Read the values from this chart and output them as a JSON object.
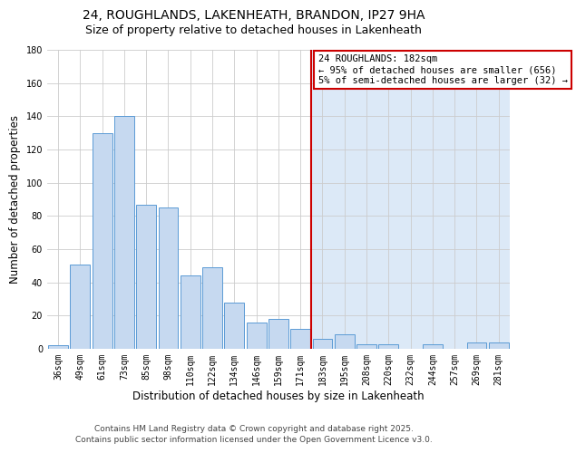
{
  "title": "24, ROUGHLANDS, LAKENHEATH, BRANDON, IP27 9HA",
  "subtitle": "Size of property relative to detached houses in Lakenheath",
  "xlabel": "Distribution of detached houses by size in Lakenheath",
  "ylabel": "Number of detached properties",
  "bar_labels": [
    "36sqm",
    "49sqm",
    "61sqm",
    "73sqm",
    "85sqm",
    "98sqm",
    "110sqm",
    "122sqm",
    "134sqm",
    "146sqm",
    "159sqm",
    "171sqm",
    "183sqm",
    "195sqm",
    "208sqm",
    "220sqm",
    "232sqm",
    "244sqm",
    "257sqm",
    "269sqm",
    "281sqm"
  ],
  "bar_values": [
    2,
    51,
    130,
    140,
    87,
    85,
    44,
    49,
    28,
    16,
    18,
    12,
    6,
    9,
    3,
    3,
    0,
    3,
    0,
    4,
    4
  ],
  "bar_color": "#c6d9f0",
  "bar_edge_color": "#5b9bd5",
  "vline_x_index": 12,
  "vline_color": "#cc0000",
  "annotation_line1": "24 ROUGHLANDS: 182sqm",
  "annotation_line2": "← 95% of detached houses are smaller (656)",
  "annotation_line3": "5% of semi-detached houses are larger (32) →",
  "annotation_box_color": "#ffffff",
  "annotation_box_edge": "#cc0000",
  "ylim": [
    0,
    180
  ],
  "yticks": [
    0,
    20,
    40,
    60,
    80,
    100,
    120,
    140,
    160,
    180
  ],
  "bg_color_left": "#ffffff",
  "bg_color_right": "#dce9f7",
  "footer_line1": "Contains HM Land Registry data © Crown copyright and database right 2025.",
  "footer_line2": "Contains public sector information licensed under the Open Government Licence v3.0.",
  "title_fontsize": 10,
  "subtitle_fontsize": 9,
  "axis_label_fontsize": 8.5,
  "tick_fontsize": 7,
  "annotation_fontsize": 7.5,
  "footer_fontsize": 6.5
}
